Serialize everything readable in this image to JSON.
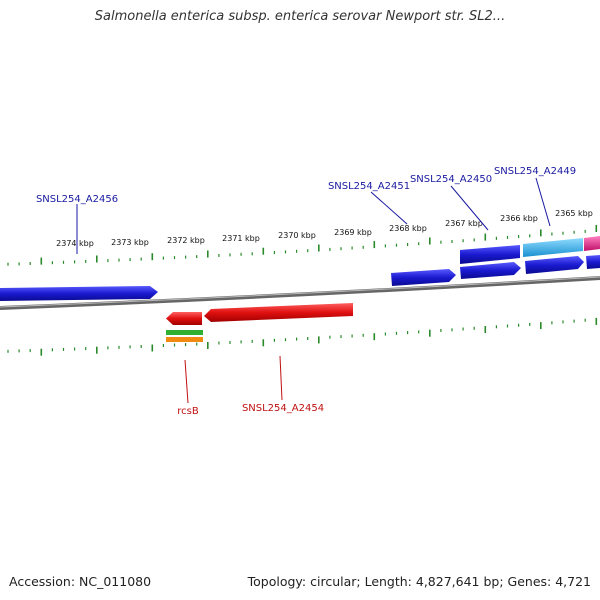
{
  "title": "Salmonella enterica subsp. enterica serovar Newport str. SL2...",
  "footer": {
    "accession": "Accession: NC_011080",
    "summary": "Topology: circular; Length: 4,827,641 bp; Genes: 4,721"
  },
  "colors": {
    "backbone": "#8a8a8a",
    "tick": "#2a8a2a",
    "forward_gene": "#1a1ad0",
    "reverse_gene": "#e01010",
    "forward_label": "#1a1aa0",
    "reverse_label": "#c01010",
    "cyan_feature": "#22a8e0",
    "magenta_feature": "#e0208a",
    "green_feature": "#30b030",
    "orange_feature": "#f08a10"
  },
  "tick_labels": [
    "2374 kbp",
    "2373 kbp",
    "2372 kbp",
    "2371 kbp",
    "2370 kbp",
    "2369 kbp",
    "2368 kbp",
    "2367 kbp",
    "2366 kbp",
    "2365 kbp"
  ],
  "gene_labels": {
    "top": [
      "SNSL254_A2456",
      "SNSL254_A2451",
      "SNSL254_A2450",
      "SNSL254_A2449"
    ],
    "bottom": [
      "rcsB",
      "SNSL254_A2454"
    ]
  }
}
